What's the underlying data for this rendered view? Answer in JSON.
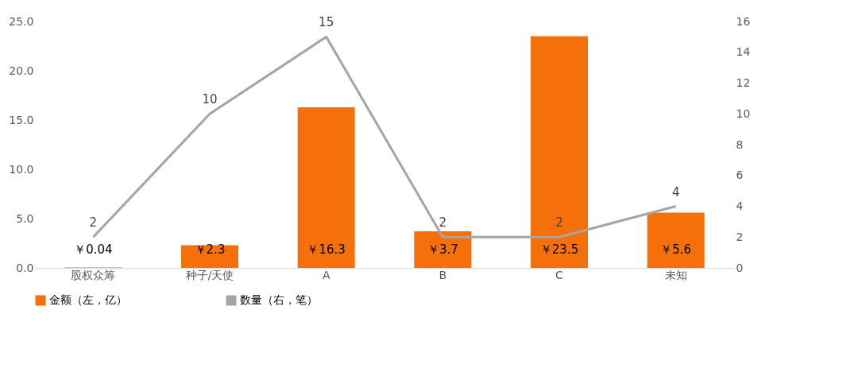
{
  "chart_data": {
    "type": "bar",
    "categories": [
      "股权众筹",
      "种子/天使",
      "A",
      "B",
      "C",
      "未知"
    ],
    "series": [
      {
        "name": "金额（左，亿）",
        "color": "#f5700a",
        "values": [
          0.04,
          2.3,
          16.3,
          3.7,
          23.5,
          5.6
        ],
        "value_labels": [
          "￥0.04",
          "￥2.3",
          "￥16.3",
          "￥3.7",
          "￥23.5",
          "￥5.6"
        ]
      },
      {
        "name": "数量（右，笔）",
        "type": "line",
        "axis": "y2",
        "color": "#a5a5a5",
        "values": [
          2,
          10,
          15,
          2,
          2,
          4
        ],
        "value_labels": [
          "2",
          "10",
          "15",
          "2",
          "2",
          "4"
        ]
      }
    ],
    "ylim": [
      0,
      25
    ],
    "yticks": [
      {
        "value": 0,
        "label": "0.0"
      },
      {
        "value": 5,
        "label": "5.0"
      },
      {
        "value": 10,
        "label": "10.0"
      },
      {
        "value": 15,
        "label": "15.0"
      },
      {
        "value": 20,
        "label": "20.0"
      },
      {
        "value": 25,
        "label": "25.0"
      }
    ],
    "y2lim": [
      0,
      16
    ],
    "y2ticks": [
      0,
      2,
      4,
      6,
      8,
      10,
      12,
      14,
      16
    ],
    "grid": false,
    "legend": "bottom",
    "marker": "none",
    "line_style": "solid"
  }
}
